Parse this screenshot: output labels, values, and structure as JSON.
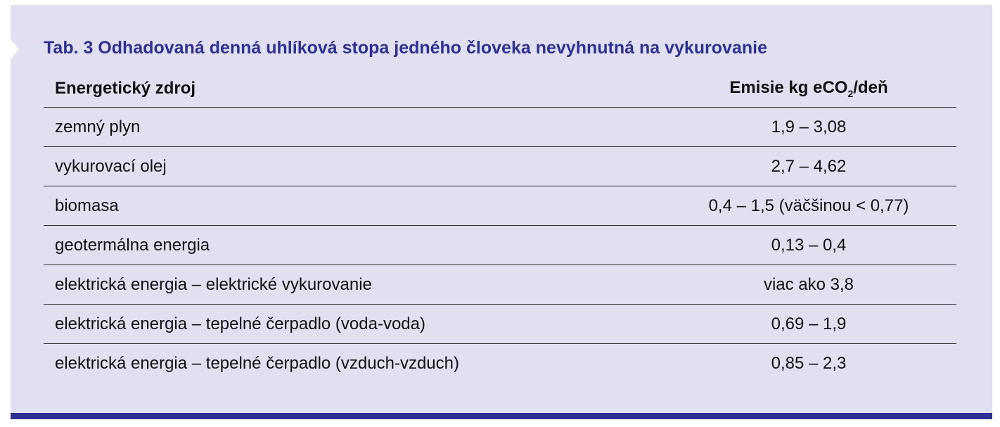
{
  "title": "Tab. 3 Odhadovaná denná uhlíková stopa jedného človeka nevyhnutná na vykurovanie",
  "columns": {
    "source": "Energetický zdroj",
    "emissions_prefix": "Emisie kg eCO",
    "emissions_sub": "2",
    "emissions_suffix": "/deň"
  },
  "rows": [
    {
      "source": "zemný plyn",
      "value": "1,9 – 3,08"
    },
    {
      "source": "vykurovací olej",
      "value": "2,7 – 4,62"
    },
    {
      "source": "biomasa",
      "value": "0,4 – 1,5 (väčšinou < 0,77)"
    },
    {
      "source": "geotermálna energia",
      "value": "0,13 – 0,4"
    },
    {
      "source": "elektrická energia – elektrické vykurovanie",
      "value": "viac ako 3,8"
    },
    {
      "source": "elektrická energia – tepelné čerpadlo (voda-voda)",
      "value": "0,69 – 1,9"
    },
    {
      "source": "elektrická energia – tepelné čerpadlo (vzduch-vzduch)",
      "value": "0,85 – 2,3"
    }
  ],
  "colors": {
    "accent": "#2e3192",
    "background": "#e1dff0"
  }
}
